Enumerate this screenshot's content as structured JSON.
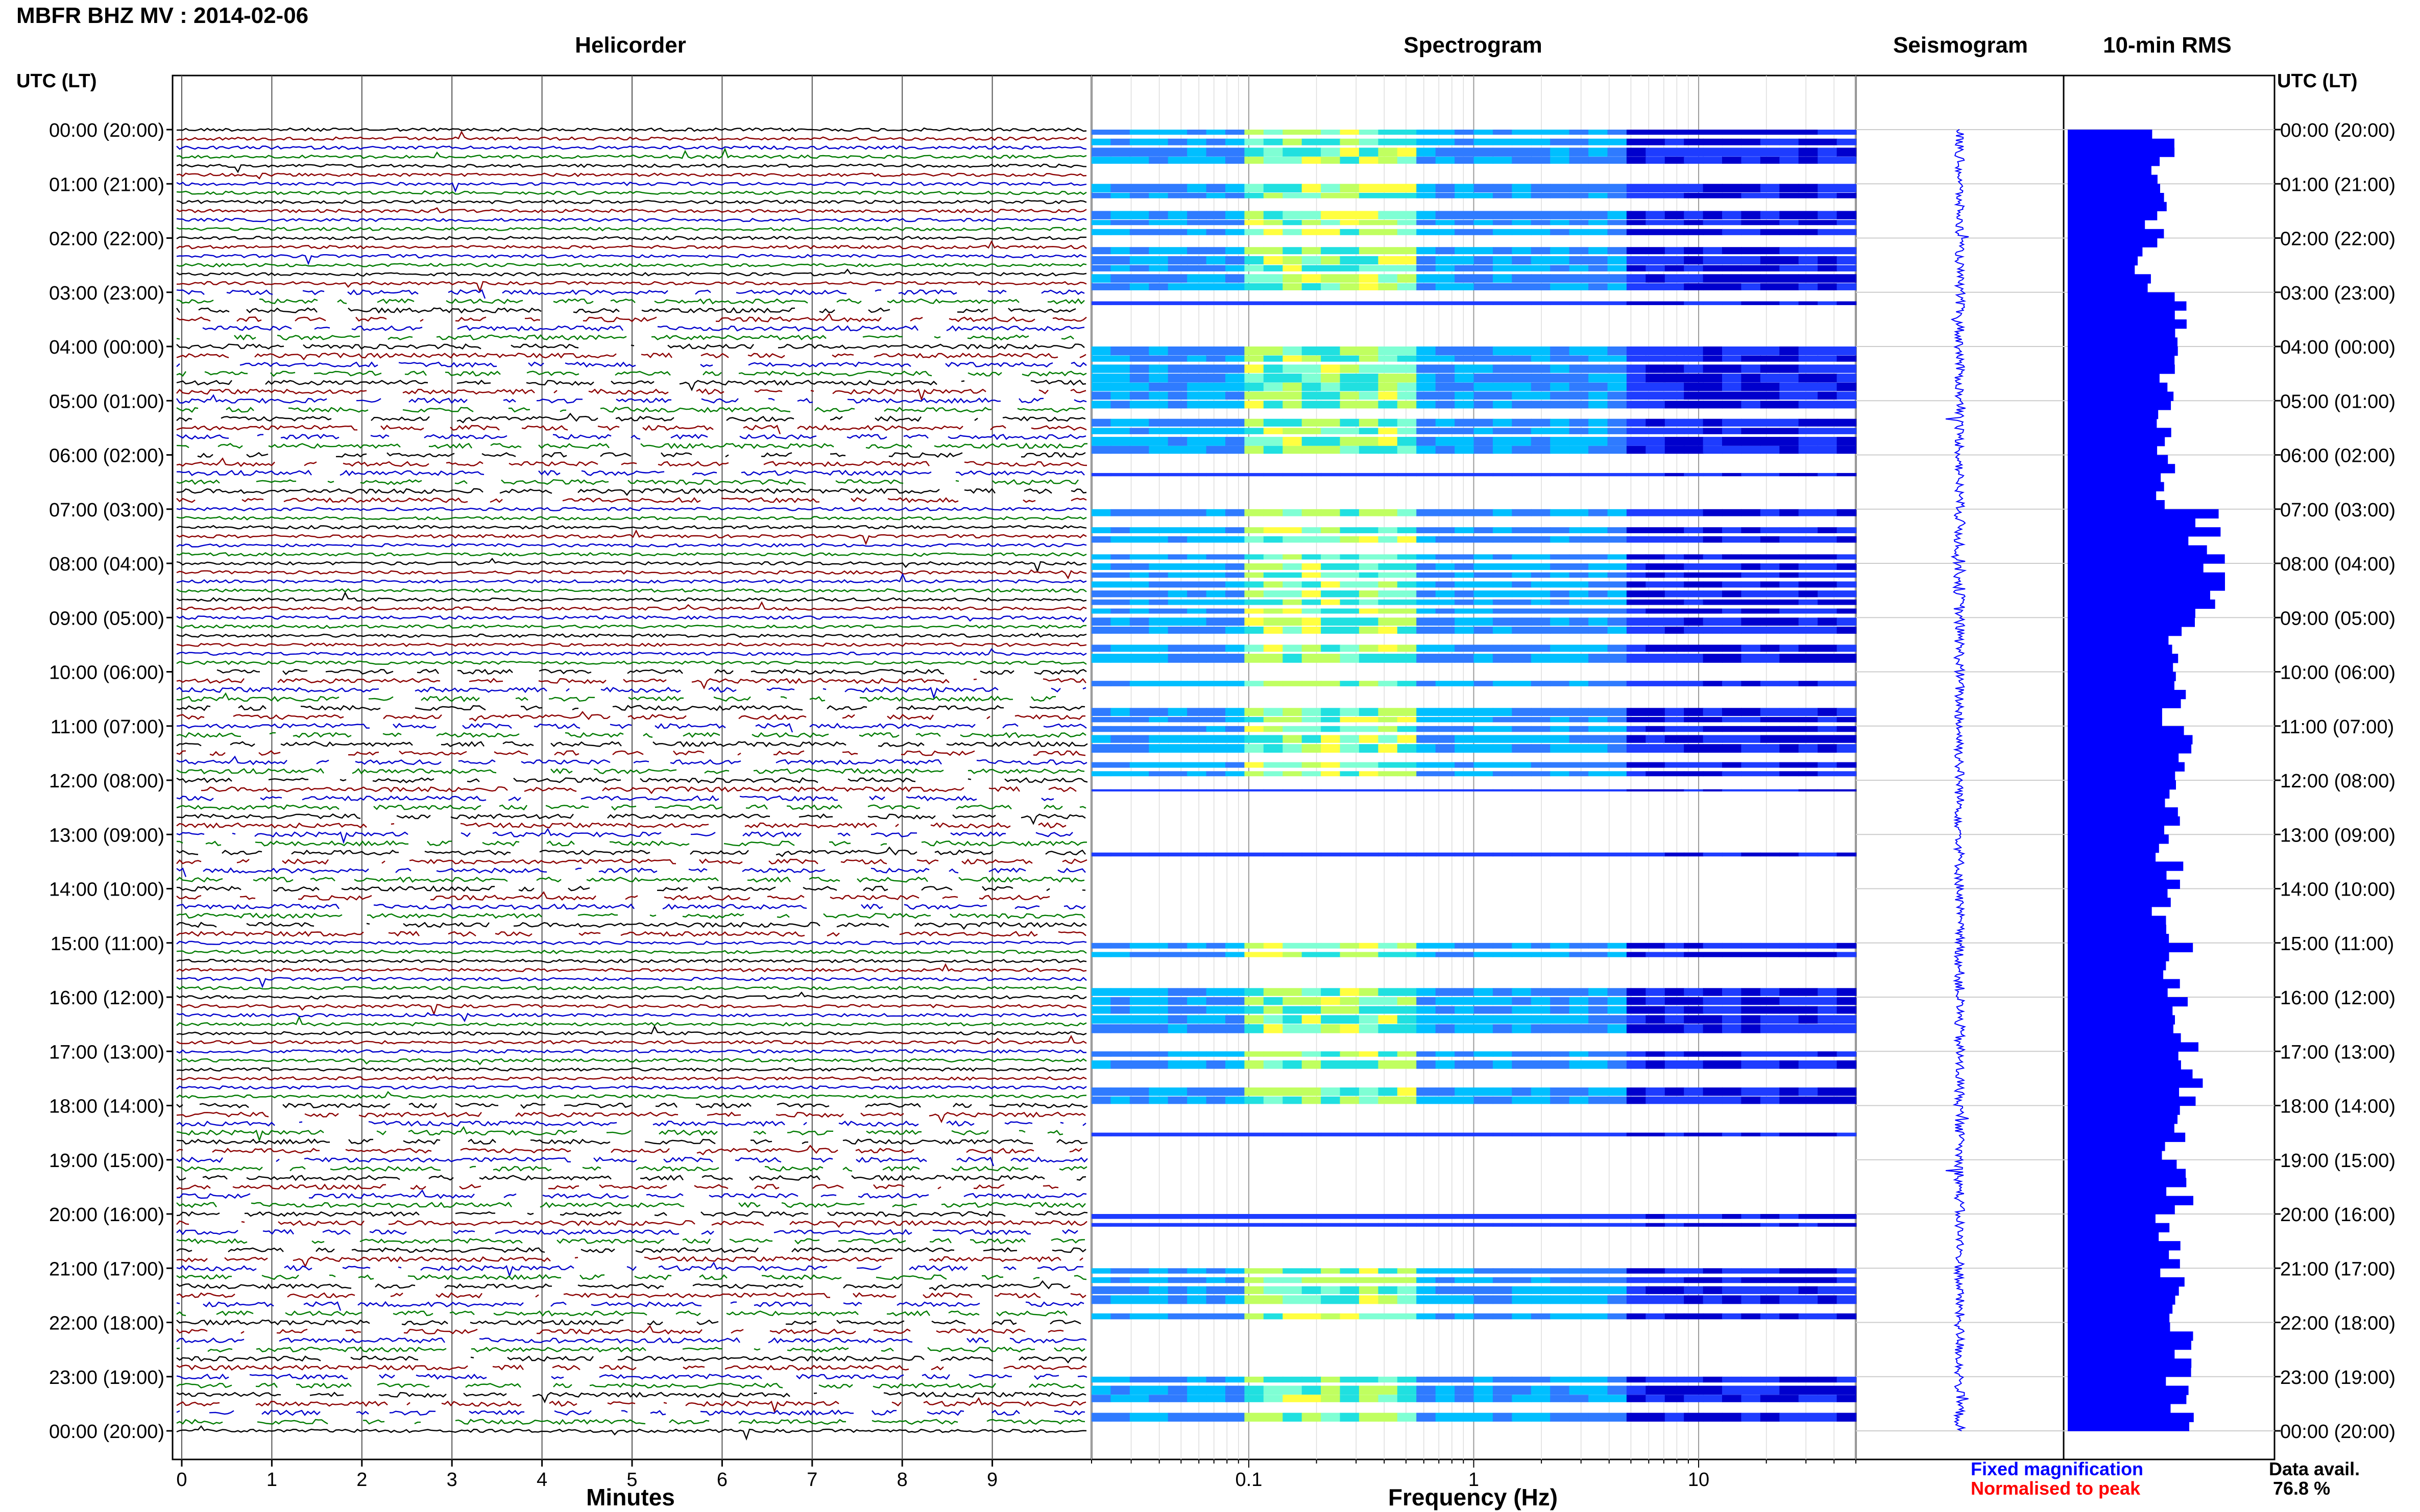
{
  "header": {
    "title": "MBFR BHZ MV : 2014-02-06"
  },
  "panels": {
    "helicorder": "Helicorder",
    "spectrogram": "Spectrogram",
    "seismogram": "Seismogram",
    "rms": "10-min RMS"
  },
  "axes": {
    "utc_label": "UTC (LT)",
    "time_ticks": [
      "00:00 (20:00)",
      "01:00 (21:00)",
      "02:00 (22:00)",
      "03:00 (23:00)",
      "04:00 (00:00)",
      "05:00 (01:00)",
      "06:00 (02:00)",
      "07:00 (03:00)",
      "08:00 (04:00)",
      "09:00 (05:00)",
      "10:00 (06:00)",
      "11:00 (07:00)",
      "12:00 (08:00)",
      "13:00 (09:00)",
      "14:00 (10:00)",
      "15:00 (11:00)",
      "16:00 (12:00)",
      "17:00 (13:00)",
      "18:00 (14:00)",
      "19:00 (15:00)",
      "20:00 (16:00)",
      "21:00 (17:00)",
      "22:00 (18:00)",
      "23:00 (19:00)",
      "00:00 (20:00)"
    ],
    "minutes_label": "Minutes",
    "minutes_ticks": [
      "0",
      "1",
      "2",
      "3",
      "4",
      "5",
      "6",
      "7",
      "8",
      "9"
    ],
    "freq_label": "Frequency (Hz)",
    "freq_ticks": [
      "0.1",
      "1",
      "10"
    ]
  },
  "legend": {
    "fixed": "Fixed magnification",
    "normalised": "Normalised to peak"
  },
  "availability": {
    "label": "Data avail.",
    "value": "76.8 %"
  },
  "colors": {
    "trace_cycle": [
      "#000000",
      "#8b0000",
      "#0000cc",
      "#007a00"
    ],
    "seismogram": "#0000ff",
    "rms": "#0000ff",
    "fixed_text": "#0000ff",
    "normalised_text": "#ff0000"
  },
  "chart_data": {
    "type": "heatmap",
    "title": "MBFR BHZ MV : 2014-02-06",
    "row_hours": [
      "00:00",
      "01:00",
      "02:00",
      "03:00",
      "04:00",
      "05:00",
      "06:00",
      "07:00",
      "08:00",
      "09:00",
      "10:00",
      "11:00",
      "12:00",
      "13:00",
      "14:00",
      "15:00",
      "16:00",
      "17:00",
      "18:00",
      "19:00",
      "20:00",
      "21:00",
      "22:00",
      "23:00"
    ],
    "helicorder_minutes_range": [
      0,
      10
    ],
    "frequency_range_hz": [
      0.02,
      50
    ],
    "frequency_scale": "log",
    "spectrogram_active_hours": [
      0,
      1,
      2,
      4,
      5,
      7,
      8,
      9,
      10,
      11,
      15,
      16,
      17,
      21,
      23
    ],
    "rms_hourly_relative": [
      0.6,
      0.55,
      0.5,
      0.7,
      0.65,
      0.6,
      0.6,
      0.9,
      0.95,
      0.75,
      0.7,
      0.7,
      0.65,
      0.65,
      0.6,
      0.7,
      0.75,
      0.75,
      0.65,
      0.7,
      0.65,
      0.65,
      0.7,
      0.7
    ],
    "data_availability_percent": 76.8
  }
}
